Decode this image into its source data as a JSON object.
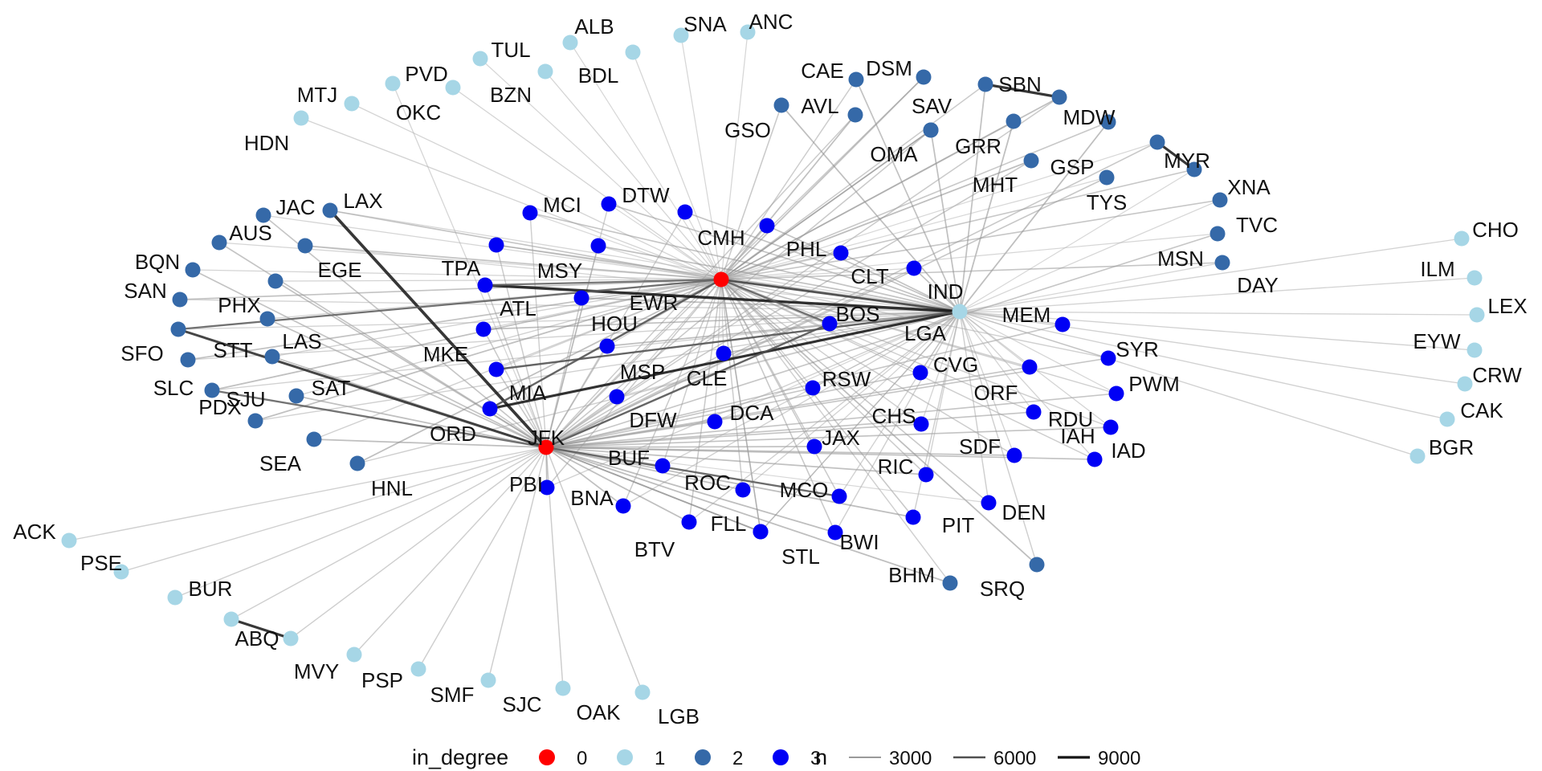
{
  "palette": {
    "0": "#ff0000",
    "1": "#a6d6e6",
    "2": "#3569a8",
    "3": "#0000f5"
  },
  "hubs": [
    "EWR",
    "JFK",
    "LGA"
  ],
  "nodes": [
    {
      "id": "EWR",
      "deg": 0
    },
    {
      "id": "JFK",
      "deg": 0
    },
    {
      "id": "LGA",
      "deg": 1
    },
    {
      "id": "ALB",
      "deg": 1
    },
    {
      "id": "SNA",
      "deg": 1
    },
    {
      "id": "ANC",
      "deg": 1
    },
    {
      "id": "TUL",
      "deg": 1
    },
    {
      "id": "BDL",
      "deg": 1
    },
    {
      "id": "PVD",
      "deg": 1
    },
    {
      "id": "BZN",
      "deg": 1
    },
    {
      "id": "OKC",
      "deg": 1
    },
    {
      "id": "MTJ",
      "deg": 1
    },
    {
      "id": "HDN",
      "deg": 1
    },
    {
      "id": "CHO",
      "deg": 1
    },
    {
      "id": "ILM",
      "deg": 1
    },
    {
      "id": "LEX",
      "deg": 1
    },
    {
      "id": "EYW",
      "deg": 1
    },
    {
      "id": "CRW",
      "deg": 1
    },
    {
      "id": "CAK",
      "deg": 1
    },
    {
      "id": "BGR",
      "deg": 1
    },
    {
      "id": "ACK",
      "deg": 1
    },
    {
      "id": "PSE",
      "deg": 1
    },
    {
      "id": "BUR",
      "deg": 1
    },
    {
      "id": "ABQ",
      "deg": 1
    },
    {
      "id": "MVY",
      "deg": 1
    },
    {
      "id": "PSP",
      "deg": 1
    },
    {
      "id": "SMF",
      "deg": 1
    },
    {
      "id": "SJC",
      "deg": 1
    },
    {
      "id": "OAK",
      "deg": 1
    },
    {
      "id": "LGB",
      "deg": 1
    },
    {
      "id": "CAE",
      "deg": 2
    },
    {
      "id": "DSM",
      "deg": 2
    },
    {
      "id": "SBN",
      "deg": 2
    },
    {
      "id": "AVL",
      "deg": 2
    },
    {
      "id": "SAV",
      "deg": 2
    },
    {
      "id": "MDW",
      "deg": 2
    },
    {
      "id": "GSO",
      "deg": 2
    },
    {
      "id": "OMA",
      "deg": 2
    },
    {
      "id": "GRR",
      "deg": 2
    },
    {
      "id": "MHT",
      "deg": 2
    },
    {
      "id": "GSP",
      "deg": 2
    },
    {
      "id": "MYR",
      "deg": 2
    },
    {
      "id": "XNA",
      "deg": 2
    },
    {
      "id": "TYS",
      "deg": 2
    },
    {
      "id": "TVC",
      "deg": 2
    },
    {
      "id": "MSN",
      "deg": 2
    },
    {
      "id": "DAY",
      "deg": 2
    },
    {
      "id": "JAC",
      "deg": 2
    },
    {
      "id": "LAX",
      "deg": 2
    },
    {
      "id": "AUS",
      "deg": 2
    },
    {
      "id": "EGE",
      "deg": 2
    },
    {
      "id": "BQN",
      "deg": 2
    },
    {
      "id": "SAN",
      "deg": 2
    },
    {
      "id": "PHX",
      "deg": 2
    },
    {
      "id": "SFO",
      "deg": 2
    },
    {
      "id": "LAS",
      "deg": 2
    },
    {
      "id": "STT",
      "deg": 2
    },
    {
      "id": "SLC",
      "deg": 2
    },
    {
      "id": "SJU",
      "deg": 2
    },
    {
      "id": "SAT",
      "deg": 2
    },
    {
      "id": "PDX",
      "deg": 2
    },
    {
      "id": "SEA",
      "deg": 2
    },
    {
      "id": "HNL",
      "deg": 2
    },
    {
      "id": "BHM",
      "deg": 2
    },
    {
      "id": "SRQ",
      "deg": 2
    },
    {
      "id": "MCI",
      "deg": 3
    },
    {
      "id": "DTW",
      "deg": 3
    },
    {
      "id": "CMH",
      "deg": 3
    },
    {
      "id": "PHL",
      "deg": 3
    },
    {
      "id": "CLT",
      "deg": 3
    },
    {
      "id": "IND",
      "deg": 3
    },
    {
      "id": "TPA",
      "deg": 3
    },
    {
      "id": "MSY",
      "deg": 3
    },
    {
      "id": "ATL",
      "deg": 3
    },
    {
      "id": "HOU",
      "deg": 3
    },
    {
      "id": "BOS",
      "deg": 3
    },
    {
      "id": "MKE",
      "deg": 3
    },
    {
      "id": "MSP",
      "deg": 3
    },
    {
      "id": "CLE",
      "deg": 3
    },
    {
      "id": "MIA",
      "deg": 3
    },
    {
      "id": "ORD",
      "deg": 3
    },
    {
      "id": "DFW",
      "deg": 3
    },
    {
      "id": "DCA",
      "deg": 3
    },
    {
      "id": "RSW",
      "deg": 3
    },
    {
      "id": "CVG",
      "deg": 3
    },
    {
      "id": "MEM",
      "deg": 3
    },
    {
      "id": "SYR",
      "deg": 3
    },
    {
      "id": "ORF",
      "deg": 3
    },
    {
      "id": "PWM",
      "deg": 3
    },
    {
      "id": "RDU",
      "deg": 3
    },
    {
      "id": "CHS",
      "deg": 3
    },
    {
      "id": "IAH",
      "deg": 3
    },
    {
      "id": "IAD",
      "deg": 3
    },
    {
      "id": "JAX",
      "deg": 3
    },
    {
      "id": "SDF",
      "deg": 3
    },
    {
      "id": "BUF",
      "deg": 3
    },
    {
      "id": "ROC",
      "deg": 3
    },
    {
      "id": "RIC",
      "deg": 3
    },
    {
      "id": "MCO",
      "deg": 3
    },
    {
      "id": "BNA",
      "deg": 3
    },
    {
      "id": "PBI",
      "deg": 3
    },
    {
      "id": "BTV",
      "deg": 3
    },
    {
      "id": "FLL",
      "deg": 3
    },
    {
      "id": "STL",
      "deg": 3
    },
    {
      "id": "BWI",
      "deg": 3
    },
    {
      "id": "PIT",
      "deg": 3
    },
    {
      "id": "DEN",
      "deg": 3
    }
  ],
  "heavy_edges": [
    {
      "from": "JFK",
      "to": "LAX",
      "n": 11000
    },
    {
      "from": "JFK",
      "to": "SFO",
      "n": 8200
    },
    {
      "from": "EWR",
      "to": "LGA",
      "n": 7000
    },
    {
      "from": "EWR",
      "to": "ORD",
      "n": 6000
    },
    {
      "from": "LGA",
      "to": "ATL",
      "n": 10000
    },
    {
      "from": "LGA",
      "to": "ORD",
      "n": 8900
    },
    {
      "from": "EWR",
      "to": "ATL",
      "n": 5000
    },
    {
      "from": "EWR",
      "to": "BOS",
      "n": 5300
    },
    {
      "from": "JFK",
      "to": "MCO",
      "n": 5400
    },
    {
      "from": "JFK",
      "to": "BOS",
      "n": 5900
    },
    {
      "from": "LGA",
      "to": "MIA",
      "n": 5800
    },
    {
      "from": "JFK",
      "to": "SJU",
      "n": 5500
    },
    {
      "from": "EWR",
      "to": "SFO",
      "n": 5100
    },
    {
      "from": "SBN",
      "to": "MDW",
      "n": 9000
    },
    {
      "from": "MYR",
      "to": "XNA",
      "n": 9000
    },
    {
      "from": "ABQ",
      "to": "MVY",
      "n": 9000
    }
  ],
  "legend": {
    "color_title": "in_degree",
    "color_items": [
      {
        "label": "0",
        "deg": "0"
      },
      {
        "label": "1",
        "deg": "1"
      },
      {
        "label": "2",
        "deg": "2"
      },
      {
        "label": "3",
        "deg": "3"
      }
    ],
    "width_title": "n",
    "width_items": [
      {
        "label": "3000",
        "n": 3000
      },
      {
        "label": "6000",
        "n": 6000
      },
      {
        "label": "9000",
        "n": 9000
      }
    ]
  }
}
